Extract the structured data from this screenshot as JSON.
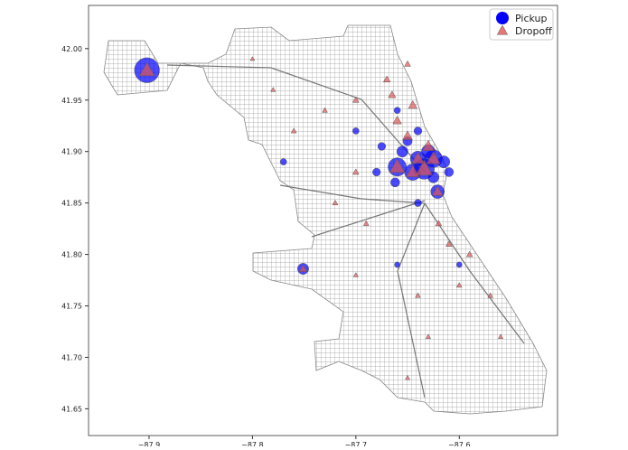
{
  "chart_data": {
    "type": "scatter",
    "xlim": [
      -87.9585,
      -87.505
    ],
    "ylim": [
      41.624,
      42.042
    ],
    "xticks": [
      {
        "value": -87.9,
        "label": "−87.9"
      },
      {
        "value": -87.8,
        "label": "−87.8"
      },
      {
        "value": -87.7,
        "label": "−87.7"
      },
      {
        "value": -87.6,
        "label": "−87.6"
      }
    ],
    "yticks": [
      {
        "value": 42.0,
        "label": "42.00"
      },
      41.95,
      {
        "value": 41.9,
        "label": "41.90"
      },
      41.85,
      {
        "value": 41.8,
        "label": "41.80"
      },
      41.75,
      {
        "value": 41.7,
        "label": "41.70"
      },
      41.65
    ],
    "legend": "upper right",
    "series": [
      {
        "name": "Pickup",
        "color": "#0000ff",
        "marker": "circle",
        "x": [
          -87.902,
          -87.751,
          -87.634,
          -87.66,
          -87.621,
          -87.625,
          -87.64,
          -87.645,
          -87.63,
          -87.615,
          -87.655,
          -87.662,
          -87.65,
          -87.64,
          -87.675,
          -87.68,
          -87.64,
          -87.625,
          -87.7,
          -87.77,
          -87.61,
          -87.66,
          -87.6,
          -87.66
        ],
        "y": [
          41.979,
          41.786,
          41.883,
          41.885,
          41.861,
          41.893,
          41.893,
          41.88,
          41.9,
          41.89,
          41.9,
          41.87,
          41.91,
          41.92,
          41.905,
          41.88,
          41.85,
          41.875,
          41.92,
          41.89,
          41.88,
          41.94,
          41.79,
          41.79
        ],
        "sizes": [
          300,
          60,
          200,
          160,
          90,
          150,
          110,
          130,
          90,
          70,
          60,
          40,
          40,
          30,
          30,
          30,
          25,
          60,
          20,
          20,
          40,
          20,
          15,
          15
        ]
      },
      {
        "name": "Dropoff",
        "color": "#e05555",
        "marker": "triangle",
        "x": [
          -87.902,
          -87.751,
          -87.634,
          -87.66,
          -87.621,
          -87.625,
          -87.64,
          -87.645,
          -87.63,
          -87.65,
          -87.66,
          -87.645,
          -87.665,
          -87.67,
          -87.65,
          -87.7,
          -87.73,
          -87.76,
          -87.7,
          -87.72,
          -87.69,
          -87.62,
          -87.61,
          -87.59,
          -87.6,
          -87.64,
          -87.57,
          -87.63,
          -87.56,
          -87.65,
          -87.7,
          -87.78,
          -87.8
        ],
        "y": [
          41.979,
          41.786,
          41.883,
          41.885,
          41.861,
          41.893,
          41.893,
          41.88,
          41.905,
          41.915,
          41.93,
          41.945,
          41.955,
          41.97,
          41.985,
          41.95,
          41.94,
          41.92,
          41.88,
          41.85,
          41.83,
          41.83,
          41.81,
          41.8,
          41.77,
          41.76,
          41.76,
          41.72,
          41.72,
          41.68,
          41.78,
          41.96,
          41.99
        ],
        "sizes": [
          120,
          30,
          150,
          120,
          60,
          100,
          80,
          90,
          70,
          50,
          40,
          40,
          30,
          25,
          20,
          20,
          15,
          15,
          20,
          15,
          15,
          20,
          20,
          20,
          15,
          15,
          15,
          12,
          12,
          12,
          12,
          12,
          10
        ]
      }
    ]
  }
}
